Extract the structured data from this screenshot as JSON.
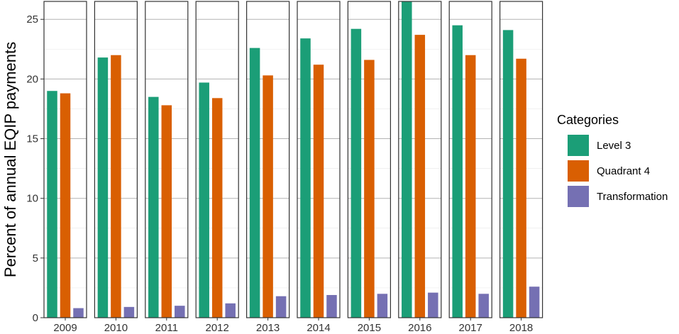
{
  "chart_data": {
    "type": "bar",
    "facet_by": "year",
    "categories": [
      "2009",
      "2010",
      "2011",
      "2012",
      "2013",
      "2014",
      "2015",
      "2016",
      "2017",
      "2018"
    ],
    "series": [
      {
        "name": "Level 3",
        "color": "#1b9e77",
        "values": [
          19.0,
          21.8,
          18.5,
          19.7,
          22.6,
          23.4,
          24.2,
          26.5,
          24.5,
          24.1
        ]
      },
      {
        "name": "Quadrant 4",
        "color": "#d95f02",
        "values": [
          18.8,
          22.0,
          17.8,
          18.4,
          20.3,
          21.2,
          21.6,
          23.7,
          22.0,
          21.7
        ]
      },
      {
        "name": "Transformation",
        "color": "#7570b3",
        "values": [
          0.8,
          0.9,
          1.0,
          1.2,
          1.8,
          1.9,
          2.0,
          2.1,
          2.0,
          2.6
        ]
      }
    ],
    "ylabel": "Percent of annual EQIP payments",
    "xlabel": "",
    "ylim": [
      0,
      26.5
    ],
    "yticks": [
      0,
      5,
      10,
      15,
      20,
      25
    ],
    "grid": true,
    "legend_title": "Categories",
    "legend_position": "right"
  }
}
